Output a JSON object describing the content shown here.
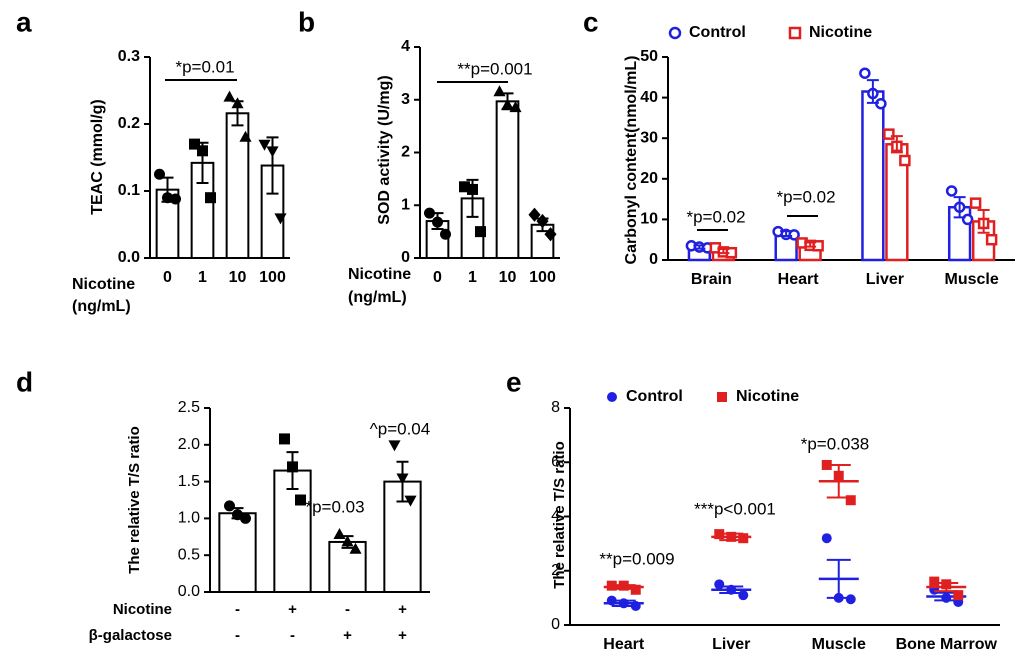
{
  "chart_data": [
    {
      "type": "bar",
      "label": "a",
      "y_label": "TEAC (mmol/g)",
      "x_label": [
        "Nicotine",
        "(ng/mL)"
      ],
      "categories": [
        "0",
        "1",
        "10",
        "100"
      ],
      "values": [
        0.102,
        0.142,
        0.216,
        0.138
      ],
      "errors": [
        0.018,
        0.03,
        0.018,
        0.042
      ],
      "points": [
        [
          0.125,
          0.09,
          0.088
        ],
        [
          0.17,
          0.16,
          0.09
        ],
        [
          0.24,
          0.23,
          0.18
        ],
        [
          0.17,
          0.16,
          0.06
        ]
      ],
      "markers": [
        "circle",
        "square",
        "triangle-up",
        "triangle-down"
      ],
      "color": "#000000",
      "filled": false,
      "ylim": [
        0,
        0.3
      ],
      "yticks": [
        {
          "value": 0,
          "label": "0.0"
        },
        0.1,
        0.2,
        0.3
      ],
      "annotations": [
        "*p=0.01"
      ]
    },
    {
      "type": "bar",
      "label": "b",
      "y_label": "SOD activity (U/mg)",
      "x_label": [
        "Nicotine",
        "(ng/mL)"
      ],
      "categories": [
        "0",
        "1",
        "10",
        "100"
      ],
      "values": [
        0.7,
        1.13,
        2.97,
        0.63
      ],
      "errors": [
        0.15,
        0.35,
        0.15,
        0.12
      ],
      "points": [
        [
          0.85,
          0.68,
          0.45
        ],
        [
          1.35,
          1.3,
          0.5
        ],
        [
          3.15,
          2.9,
          2.85
        ],
        [
          0.82,
          0.7,
          0.45
        ]
      ],
      "markers": [
        "circle",
        "square",
        "triangle-up",
        "diamond"
      ],
      "color": "#000000",
      "filled": false,
      "ylim": [
        0,
        4
      ],
      "yticks": [
        0,
        1,
        2,
        3,
        4
      ],
      "annotations": [
        "**p=0.001"
      ]
    },
    {
      "type": "grouped_bar",
      "label": "c",
      "y_label": "Carbonyl content(nmol/mL)",
      "categories": [
        "Brain",
        "Heart",
        "Liver",
        "Muscle"
      ],
      "filled": false,
      "series": [
        {
          "name": "Control",
          "color": "#2020e0",
          "marker": "circle",
          "values": [
            3.2,
            6.5,
            41.5,
            13
          ],
          "errors": [
            0.4,
            0.6,
            2.8,
            2.5
          ],
          "points": [
            [
              3.5,
              3.2,
              3
            ],
            [
              7,
              6.3,
              6.2
            ],
            [
              46,
              41,
              38.5
            ],
            [
              17,
              13,
              10
            ]
          ]
        },
        {
          "name": "Nicotine",
          "color": "#e02020",
          "marker": "square",
          "values": [
            2.2,
            3.8,
            28.5,
            9.5
          ],
          "errors": [
            0.5,
            0.5,
            2,
            2.8
          ],
          "points": [
            [
              3,
              2,
              1.8
            ],
            [
              4.2,
              3.6,
              3.5
            ],
            [
              31,
              28,
              24.5
            ],
            [
              14,
              9,
              5
            ]
          ]
        }
      ],
      "ylim": [
        0,
        50
      ],
      "yticks": [
        0,
        10,
        20,
        30,
        40,
        50
      ],
      "annotations": [
        "*p=0.02",
        "*p=0.02"
      ]
    },
    {
      "type": "bar",
      "label": "d",
      "y_label": "The relative T/S ratio",
      "conditions": [
        {
          "name": "Nicotine",
          "levels": [
            "-",
            "+",
            "-",
            "+"
          ]
        },
        {
          "name": "β-galactose",
          "levels": [
            "-",
            "-",
            "+",
            "+"
          ]
        }
      ],
      "values": [
        1.07,
        1.65,
        0.68,
        1.5
      ],
      "errors": [
        0.07,
        0.25,
        0.08,
        0.27
      ],
      "points": [
        [
          1.17,
          1.05,
          1.0
        ],
        [
          2.08,
          1.7,
          1.25
        ],
        [
          0.78,
          0.68,
          0.58
        ],
        [
          2.0,
          1.55,
          1.25
        ]
      ],
      "markers": [
        "circle",
        "square",
        "triangle-up",
        "triangle-down"
      ],
      "color": "#000000",
      "filled": false,
      "ylim": [
        0,
        2.5
      ],
      "yticks": [
        {
          "value": 0,
          "label": "0.0"
        },
        0.5,
        {
          "value": 1,
          "label": "1.0"
        },
        1.5,
        {
          "value": 2,
          "label": "2.0"
        },
        2.5
      ],
      "annotations": [
        "*p=0.03",
        "^p=0.04"
      ]
    },
    {
      "type": "dot_plot",
      "label": "e",
      "y_label": "The relative T/S ratio",
      "categories": [
        "Heart",
        "Liver",
        "Muscle",
        "Bone Marrow"
      ],
      "series": [
        {
          "name": "Control",
          "color": "#2020e0",
          "marker": "circle",
          "values": [
            0.8,
            1.3,
            1.7,
            1.05
          ],
          "errors": [
            0.1,
            0.12,
            0.7,
            0.14
          ],
          "points": [
            [
              0.9,
              0.8,
              0.7
            ],
            [
              1.5,
              1.3,
              1.1
            ],
            [
              3.2,
              1.0,
              0.95
            ],
            [
              1.3,
              1.0,
              0.85
            ]
          ]
        },
        {
          "name": "Nicotine",
          "color": "#e02020",
          "marker": "square",
          "values": [
            1.4,
            3.25,
            5.3,
            1.4
          ],
          "errors": [
            0.07,
            0.12,
            0.6,
            0.15
          ],
          "points": [
            [
              1.45,
              1.45,
              1.3
            ],
            [
              3.35,
              3.25,
              3.2
            ],
            [
              5.9,
              5.5,
              4.6
            ],
            [
              1.6,
              1.5,
              1.1
            ]
          ]
        }
      ],
      "ylim": [
        0,
        8
      ],
      "yticks": [
        0,
        2,
        4,
        6,
        8
      ],
      "annotations": [
        "**p=0.009",
        "***p<0.001",
        "*p=0.038"
      ]
    }
  ]
}
